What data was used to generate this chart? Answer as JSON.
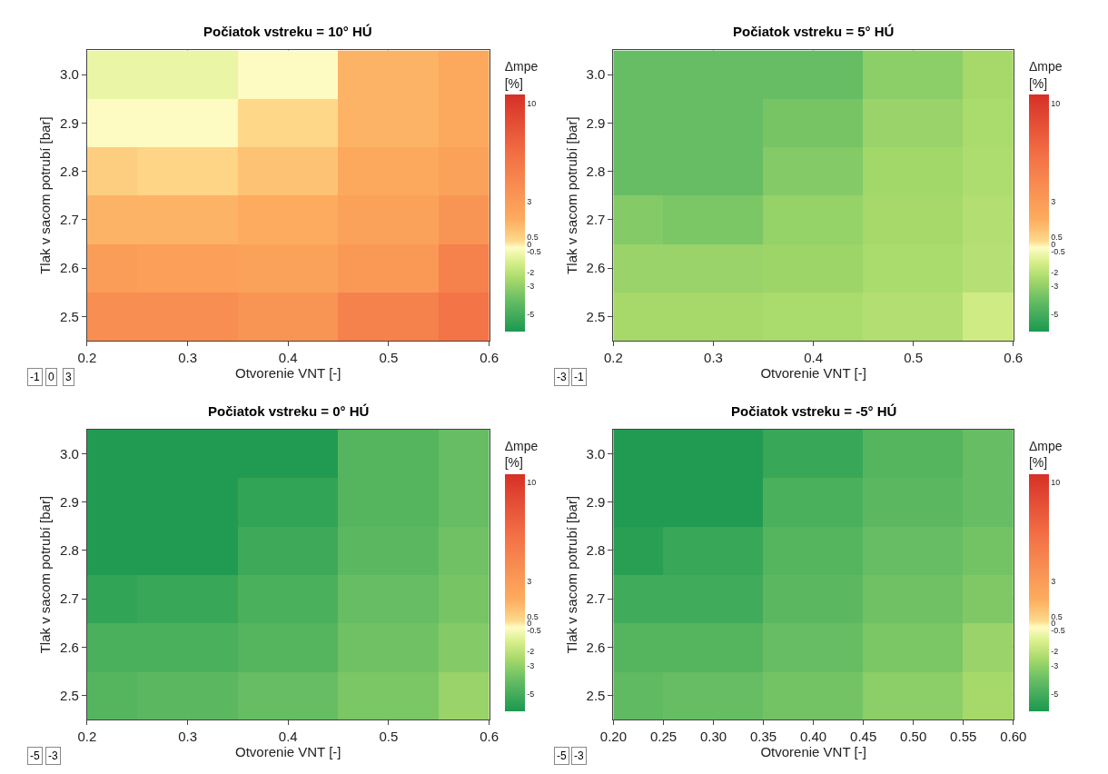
{
  "chart_data": [
    {
      "type": "heatmap",
      "title": "Počiatok vstreku = 10° HÚ",
      "xlabel": "Otvorenie VNT [-]",
      "ylabel": "Tlak v sacom potrubí [bar]",
      "clabel": "Δmpe [%]",
      "x": [
        0.2,
        0.3,
        0.4,
        0.5,
        0.6
      ],
      "y_categories": [
        "3.0",
        "2.9",
        "2.8",
        "2.7",
        "2.6",
        "2.5"
      ],
      "cells": [
        [
          -0.8,
          -0.8,
          -0.3,
          1.5,
          2
        ],
        [
          -0.3,
          -0.3,
          0.3,
          1.5,
          2
        ],
        [
          0.6,
          0.4,
          1,
          2,
          2.5
        ],
        [
          1.5,
          1.5,
          1.8,
          2.5,
          3.5
        ],
        [
          2.9,
          2.7,
          2.5,
          3.2,
          5
        ],
        [
          4,
          4,
          3.5,
          5,
          6
        ]
      ],
      "clim": [
        -6.2,
        10.6
      ],
      "cticks": [
        -5,
        -3,
        -2,
        -0.5,
        0,
        0.5,
        3,
        10
      ],
      "colors": [
        "#1a9850",
        "#66bd63",
        "#a6d96a",
        "#d9ef8b",
        "#fffcc4",
        "#fed88a",
        "#fdac5e",
        "#f26d44",
        "#d73027"
      ],
      "xlim": [
        0.2,
        0.6
      ],
      "xticks": [
        0.2,
        0.3,
        0.4,
        0.5,
        0.6
      ],
      "grid": true,
      "annotations": [
        "-1",
        "0",
        "3"
      ]
    },
    {
      "type": "heatmap",
      "title": "Počiatok vstreku = 5° HÚ",
      "xlabel": "Otvorenie VNT [-]",
      "ylabel": "Tlak v sacom potrubí [bar]",
      "clabel": "Δmpe [%]",
      "x": [
        0.2,
        0.3,
        0.4,
        0.5,
        0.6
      ],
      "y_categories": [
        "3.0",
        "2.9",
        "2.8",
        "2.7",
        "2.6",
        "2.5"
      ],
      "cells": [
        [
          -4,
          -4,
          -4,
          -3.1,
          -2.5
        ],
        [
          -4,
          -4,
          -3.6,
          -2.8,
          -2.4
        ],
        [
          -4,
          -4,
          -3.3,
          -2.6,
          -2.3
        ],
        [
          -3.3,
          -3.5,
          -2.9,
          -2.5,
          -2.2
        ],
        [
          -2.8,
          -2.8,
          -2.7,
          -2.4,
          -2.1
        ],
        [
          -2.5,
          -2.5,
          -2.4,
          -2.2,
          -1.5
        ]
      ],
      "clim": [
        -6.2,
        10.6
      ],
      "cticks": [
        -5,
        -3,
        -2,
        -0.5,
        0,
        0.5,
        3,
        10
      ],
      "colors": [
        "#1a9850",
        "#66bd63",
        "#a6d96a",
        "#d9ef8b",
        "#fffcc4",
        "#fed88a",
        "#fdac5e",
        "#f26d44",
        "#d73027"
      ],
      "xlim": [
        0.2,
        0.6
      ],
      "xticks": [
        0.2,
        0.3,
        0.4,
        0.5,
        0.6
      ],
      "grid": true,
      "annotations": [
        "-3",
        "-1"
      ]
    },
    {
      "type": "heatmap",
      "title": "Počiatok vstreku = 0° HÚ",
      "xlabel": "Otvorenie VNT [-]",
      "ylabel": "Tlak v sacom potrubí [bar]",
      "clabel": "Δmpe [%]",
      "x": [
        0.2,
        0.3,
        0.4,
        0.5,
        0.6
      ],
      "y_categories": [
        "3.0",
        "2.9",
        "2.8",
        "2.7",
        "2.6",
        "2.5"
      ],
      "cells": [
        [
          -6,
          -6,
          -6,
          -4.5,
          -4
        ],
        [
          -6,
          -6,
          -5.5,
          -4.5,
          -4
        ],
        [
          -6,
          -6,
          -5.2,
          -4.3,
          -3.8
        ],
        [
          -5.5,
          -5.3,
          -4.8,
          -4,
          -3.6
        ],
        [
          -4.8,
          -4.8,
          -4.5,
          -3.8,
          -3.3
        ],
        [
          -4.5,
          -4.3,
          -4,
          -3.5,
          -2.8
        ]
      ],
      "clim": [
        -6.2,
        10.6
      ],
      "cticks": [
        -5,
        -3,
        -2,
        -0.5,
        0,
        0.5,
        3,
        10
      ],
      "colors": [
        "#1a9850",
        "#66bd63",
        "#a6d96a",
        "#d9ef8b",
        "#fffcc4",
        "#fed88a",
        "#fdac5e",
        "#f26d44",
        "#d73027"
      ],
      "xlim": [
        0.2,
        0.6
      ],
      "xticks": [
        0.2,
        0.3,
        0.4,
        0.5,
        0.6
      ],
      "grid": true,
      "annotations": [
        "-5",
        "-3"
      ]
    },
    {
      "type": "heatmap",
      "title": "Počiatok vstreku = -5° HÚ",
      "xlabel": "Otvorenie VNT [-]",
      "ylabel": "Tlak v sacom potrubí [bar]",
      "clabel": "Δmpe [%]",
      "x": [
        0.2,
        0.3,
        0.4,
        0.5,
        0.6
      ],
      "y_categories": [
        "3.0",
        "2.9",
        "2.8",
        "2.7",
        "2.6",
        "2.5"
      ],
      "cells": [
        [
          -6,
          -6,
          -5.3,
          -4.5,
          -4
        ],
        [
          -6,
          -6,
          -4.8,
          -4.3,
          -4
        ],
        [
          -5.8,
          -5.3,
          -4.5,
          -4,
          -3.7
        ],
        [
          -5.1,
          -5.1,
          -4.3,
          -3.8,
          -3.4
        ],
        [
          -4.5,
          -4.5,
          -4,
          -3.5,
          -2.8
        ],
        [
          -4.2,
          -4,
          -3.7,
          -3.1,
          -2.5
        ]
      ],
      "clim": [
        -6.2,
        10.6
      ],
      "cticks": [
        -5,
        -3,
        -2,
        -0.5,
        0,
        0.5,
        3,
        10
      ],
      "colors": [
        "#1a9850",
        "#66bd63",
        "#a6d96a",
        "#d9ef8b",
        "#fffcc4",
        "#fed88a",
        "#fdac5e",
        "#f26d44",
        "#d73027"
      ],
      "xlim": [
        0.2,
        0.6
      ],
      "xticks": [
        {
          "value": 0.2,
          "label": "0.20"
        },
        {
          "value": 0.25,
          "label": "0.25"
        },
        {
          "value": 0.3,
          "label": "0.30"
        },
        {
          "value": 0.35,
          "label": "0.35"
        },
        {
          "value": 0.4,
          "label": "0.40"
        },
        {
          "value": 0.45,
          "label": "0.45"
        },
        {
          "value": 0.5,
          "label": "0.50"
        },
        {
          "value": 0.55,
          "label": "0.55"
        },
        {
          "value": 0.6,
          "label": "0.60"
        }
      ],
      "grid": true,
      "annotations": [
        "-5",
        "-3"
      ]
    }
  ]
}
